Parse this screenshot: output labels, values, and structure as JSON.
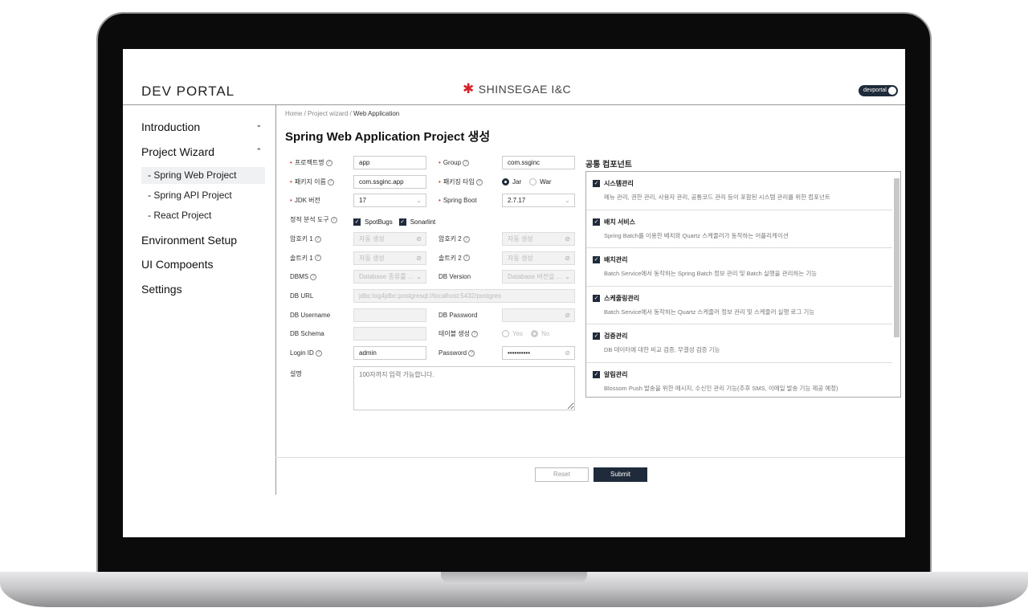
{
  "header": {
    "logo": "DEV PORTAL",
    "brand": "SHINSEGAE I&C",
    "brand_color": "#d6202a",
    "toggle_label": "devportal"
  },
  "sidebar": {
    "items": [
      {
        "label": "Introduction",
        "chevron": "chevron-down"
      },
      {
        "label": "Project Wizard",
        "chevron": "chevron-up"
      },
      {
        "label": "Environment Setup"
      },
      {
        "label": "UI Compoents"
      },
      {
        "label": "Settings"
      }
    ],
    "sub_items": [
      {
        "label": "- Spring Web Project",
        "active": true
      },
      {
        "label": "- Spring API Project"
      },
      {
        "label": "- React Project"
      }
    ]
  },
  "breadcrumb": {
    "home": "Home",
    "wizard": "Project wizard",
    "current": "Web Application",
    "sep": "/"
  },
  "page_title": "Spring Web Application Project 생성",
  "form": {
    "rows": [
      [
        {
          "label": "프로젝트명",
          "req": true,
          "help": true,
          "type": "text",
          "value": "app"
        },
        {
          "label": "Group",
          "req": true,
          "help": true,
          "type": "text",
          "value": "com.ssginc"
        }
      ],
      [
        {
          "label": "패키지 이름",
          "req": true,
          "help": true,
          "type": "text",
          "value": "com.ssginc.app"
        },
        {
          "label": "패키징 타입",
          "req": true,
          "help": true,
          "type": "radio",
          "options": [
            "Jar",
            "War"
          ],
          "selected": "Jar"
        }
      ],
      [
        {
          "label": "JDK 버전",
          "req": true,
          "type": "select",
          "value": "17"
        },
        {
          "label": "Spring Boot",
          "req": true,
          "type": "select",
          "value": "2.7.17"
        }
      ],
      [
        {
          "label": "정적 분석 도구",
          "help": true,
          "type": "checkbox",
          "options": [
            "SpotBugs",
            "Sonarlint"
          ]
        }
      ],
      [
        {
          "label": "암호키 1",
          "help": true,
          "type": "secret",
          "placeholder": "자동 생성",
          "disabled": true
        },
        {
          "label": "암호키 2",
          "help": true,
          "type": "secret",
          "placeholder": "자동 생성",
          "disabled": true
        }
      ],
      [
        {
          "label": "솔트키 1",
          "help": true,
          "type": "secret",
          "placeholder": "자동 생성",
          "disabled": true
        },
        {
          "label": "솔트키 2",
          "help": true,
          "type": "secret",
          "placeholder": "자동 생성",
          "disabled": true
        }
      ],
      [
        {
          "label": "DBMS",
          "help": true,
          "type": "select",
          "placeholder": "Database 종류를 ...",
          "disabled": true
        },
        {
          "label": "DB Version",
          "type": "select",
          "placeholder": "Database 버전을 ...",
          "disabled": true
        }
      ],
      [
        {
          "label": "DB URL",
          "type": "wide",
          "placeholder": "jdbc:log4jdbc:postgresql://localhost:5432/postgres",
          "disabled": true
        }
      ],
      [
        {
          "label": "DB Username",
          "type": "text",
          "disabled": true
        },
        {
          "label": "DB Password",
          "type": "secret",
          "disabled": true
        }
      ],
      [
        {
          "label": "DB Schema",
          "type": "text",
          "disabled": true
        },
        {
          "label": "테이블 생성",
          "help": true,
          "type": "radio",
          "options": [
            "Yes",
            "No"
          ],
          "selected": "No",
          "disabled": true
        }
      ],
      [
        {
          "label": "Login ID",
          "help": true,
          "type": "text",
          "value": "admin"
        },
        {
          "label": "Password",
          "help": true,
          "type": "secret",
          "value": "••••••••••"
        }
      ]
    ],
    "description": {
      "label": "설명",
      "placeholder": "100자까지 입력 가능합니다."
    }
  },
  "components": {
    "title": "공통 컴포넌트",
    "items": [
      {
        "name": "시스템관리",
        "desc": "메뉴 관리, 권한 관리, 사용자 관리, 공통코드 관리 등이 포함된 시스템 관리를 위한 컴포넌트",
        "checked": true
      },
      {
        "name": "배치 서비스",
        "desc": "Spring Batch를 이용한 배치와 Quartz 스케줄러가 동작하는 어플리케이션",
        "checked": true
      },
      {
        "name": "배치관리",
        "desc": "Batch Service에서 동작하는 Spring Batch 정보 관리 및 Batch 실행을 관리하는 기능",
        "checked": true
      },
      {
        "name": "스케줄링관리",
        "desc": "Batch Service에서 동작하는 Quartz 스케줄러 정보 관리 및 스케줄러 실행 로그 기능",
        "checked": true
      },
      {
        "name": "검증관리",
        "desc": "DB 데이터에 대한 비교 검증, 무결성 검증 기능",
        "checked": true
      },
      {
        "name": "알림관리",
        "desc": "Blossom Push 발송을 위한 메시지, 수신인 관리 기능(추후 SMS, 이메일 발송 기능 제공 예정)",
        "checked": true
      }
    ]
  },
  "actions": {
    "reset": "Reset",
    "submit": "Submit"
  }
}
